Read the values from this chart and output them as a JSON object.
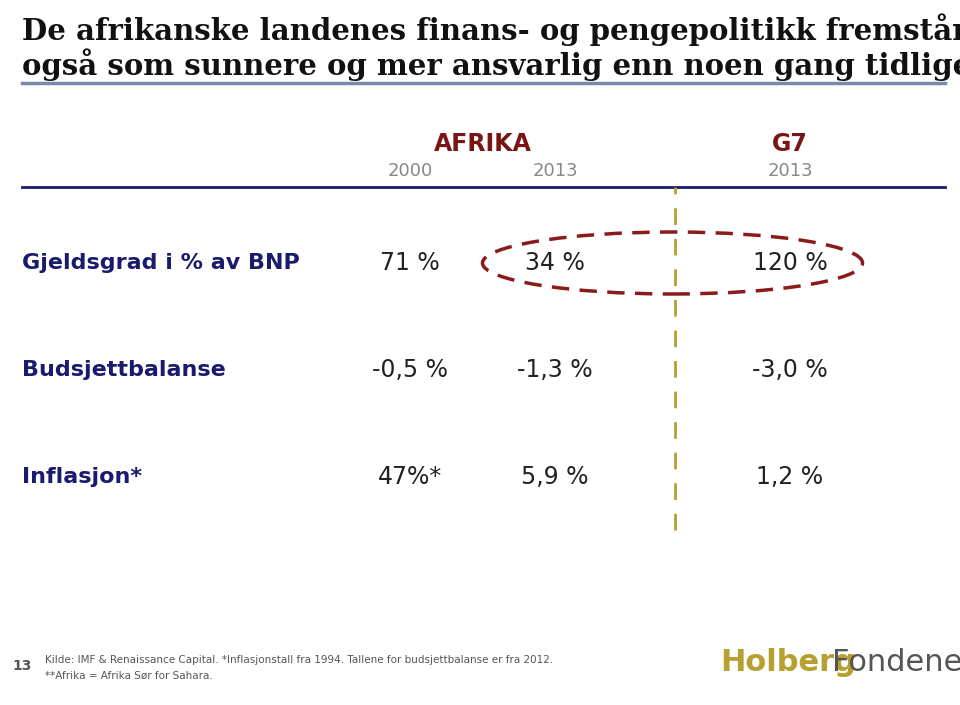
{
  "title_line1": "De afrikanske landenes finans- og pengepolitikk fremstår",
  "title_line2": "også som sunnere og mer ansvarlig enn noen gang tidligere",
  "col_header_africa": "AFRIKA",
  "col_header_g7": "G7",
  "col_sub_2000": "2000",
  "col_sub_2013_africa": "2013",
  "col_sub_2013_g7": "2013",
  "rows": [
    {
      "label": "Gjeldsgrad i % av BNP",
      "val2000": "71 %",
      "val2013": "34 %",
      "valg7": "120 %",
      "highlight": true
    },
    {
      "label": "Budsjettbalanse",
      "val2000": "-0,5 %",
      "val2013": "-1,3 %",
      "valg7": "-3,0 %",
      "highlight": false
    },
    {
      "label": "Inflasjon*",
      "val2000": "47%*",
      "val2013": "5,9 %",
      "valg7": "1,2 %",
      "highlight": false
    }
  ],
  "footnote1": "Kilde: IMF & Renaissance Capital. *Inflasjonstall fra 1994. Tallene for budsjettbalanse er fra 2012.",
  "footnote2": "**Afrika = Afrika Sør for Sahara.",
  "page_number": "13",
  "holberg_color": "#b5a030",
  "fondene_color": "#555555",
  "title_color": "#111111",
  "header_africa_color": "#7a1515",
  "header_g7_color": "#7a1515",
  "subheader_color": "#888888",
  "label_color": "#1a1a6e",
  "value_color": "#222222",
  "dashed_line_color": "#b5a030",
  "dashed_ellipse_color": "#8b1a1a",
  "header_line_color": "#1a1a6e",
  "title_rule_color": "#aaaaaa",
  "background_color": "#ffffff",
  "title_fontsize": 21,
  "header_fontsize": 17,
  "subheader_fontsize": 13,
  "label_fontsize": 16,
  "value_fontsize": 17
}
